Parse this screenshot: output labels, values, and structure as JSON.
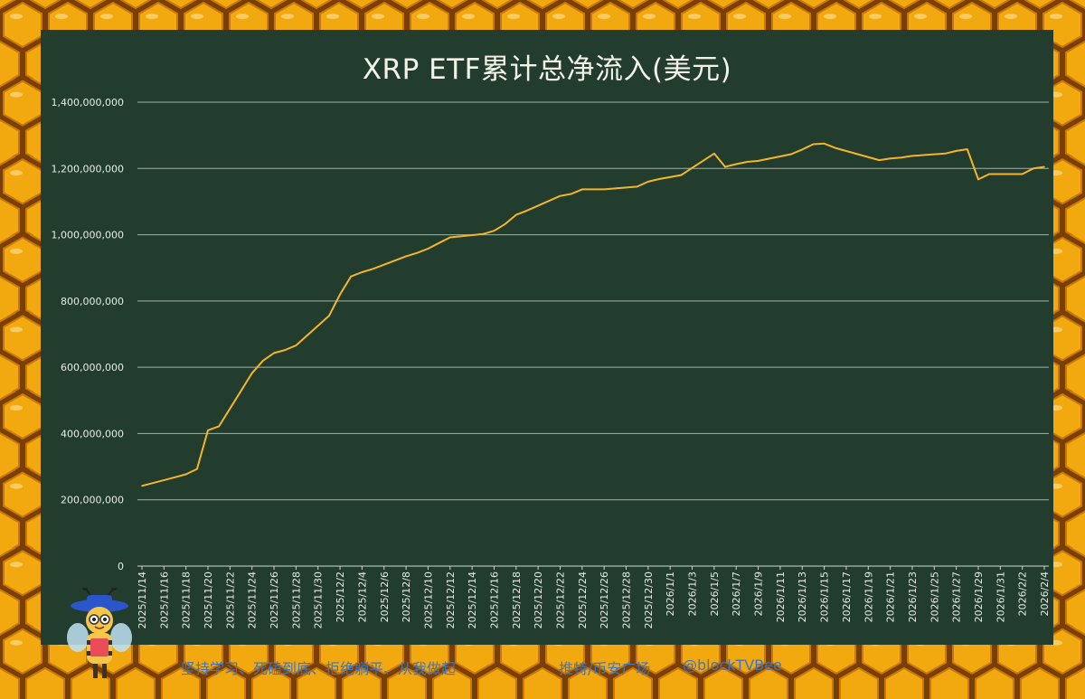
{
  "theme": {
    "panel_bg": "#223d2e",
    "line_color": "#f5b52a",
    "grid_color": "#d0d8d0",
    "honey": "#f2a80f",
    "footer_text": "#3d76c2"
  },
  "footer": {
    "slogan": "坚持学习、死磕到底、拒绝躺平、从我做起",
    "platform": "推特/币安广场",
    "handle": "@blockTVBee"
  },
  "chart_data": {
    "type": "line",
    "title": "XRP ETF累计总净流入(美元)",
    "xlabel": "",
    "ylabel": "",
    "ylim": [
      0,
      1400000000
    ],
    "y_ticks": [
      0,
      200000000,
      400000000,
      600000000,
      800000000,
      1000000000,
      1200000000,
      1400000000
    ],
    "y_tick_labels": [
      "0",
      "200,000,000",
      "400,000,000",
      "600,000,000",
      "800,000,000",
      "1,000,000,000",
      "1,200,000,000",
      "1,400,000,000"
    ],
    "x_tick_labels": [
      "2025/11/14",
      "2025/11/16",
      "2025/11/18",
      "2025/11/20",
      "2025/11/22",
      "2025/11/24",
      "2025/11/26",
      "2025/11/28",
      "2025/11/30",
      "2025/12/2",
      "2025/12/4",
      "2025/12/6",
      "2025/12/8",
      "2025/12/10",
      "2025/12/12",
      "2025/12/14",
      "2025/12/16",
      "2025/12/18",
      "2025/12/20",
      "2025/12/22",
      "2025/12/24",
      "2025/12/26",
      "2025/12/28",
      "2025/12/30",
      "2026/1/1",
      "2026/1/3",
      "2026/1/5",
      "2026/1/7",
      "2026/1/9",
      "2026/1/11",
      "2026/1/13",
      "2026/1/15",
      "2026/1/17",
      "2026/1/19",
      "2026/1/21",
      "2026/1/23",
      "2026/1/25",
      "2026/1/27",
      "2026/1/29",
      "2026/1/31",
      "2026/2/2",
      "2026/2/4"
    ],
    "grid": true,
    "legend": "none",
    "series": [
      {
        "x": [
          "2025/11/14",
          "2025/11/17",
          "2025/11/18",
          "2025/11/19",
          "2025/11/20",
          "2025/11/21",
          "2025/11/24",
          "2025/11/25",
          "2025/11/26",
          "2025/11/27",
          "2025/11/28",
          "2025/12/1",
          "2025/12/2",
          "2025/12/3",
          "2025/12/4",
          "2025/12/5",
          "2025/12/8",
          "2025/12/9",
          "2025/12/10",
          "2025/12/11",
          "2025/12/12",
          "2025/12/15",
          "2025/12/16",
          "2025/12/17",
          "2025/12/18",
          "2025/12/19",
          "2025/12/22",
          "2025/12/23",
          "2025/12/24",
          "2025/12/26",
          "2025/12/29",
          "2025/12/30",
          "2025/12/31",
          "2026/1/2",
          "2026/1/5",
          "2026/1/6",
          "2026/1/7",
          "2026/1/8",
          "2026/1/9",
          "2026/1/12",
          "2026/1/13",
          "2026/1/14",
          "2026/1/15",
          "2026/1/16",
          "2026/1/20",
          "2026/1/21",
          "2026/1/22",
          "2026/1/23",
          "2026/1/26",
          "2026/1/27",
          "2026/1/28",
          "2026/1/29",
          "2026/1/30",
          "2026/2/2",
          "2026/2/3",
          "2026/2/4"
        ],
        "values": [
          242000000,
          268000000,
          277000000,
          293000000,
          410000000,
          422000000,
          582000000,
          620000000,
          643000000,
          652000000,
          666000000,
          755000000,
          820000000,
          874000000,
          887000000,
          897000000,
          935000000,
          945000000,
          958000000,
          975000000,
          992000000,
          1002000000,
          1012000000,
          1032000000,
          1060000000,
          1073000000,
          1117000000,
          1123000000,
          1137000000,
          1137000000,
          1145000000,
          1160000000,
          1168000000,
          1180000000,
          1245000000,
          1205000000,
          1213000000,
          1220000000,
          1223000000,
          1243000000,
          1257000000,
          1273000000,
          1275000000,
          1262000000,
          1225000000,
          1230000000,
          1233000000,
          1238000000,
          1245000000,
          1253000000,
          1258000000,
          1167000000,
          1183000000,
          1183000000,
          1200000000,
          1205000000
        ]
      }
    ]
  }
}
